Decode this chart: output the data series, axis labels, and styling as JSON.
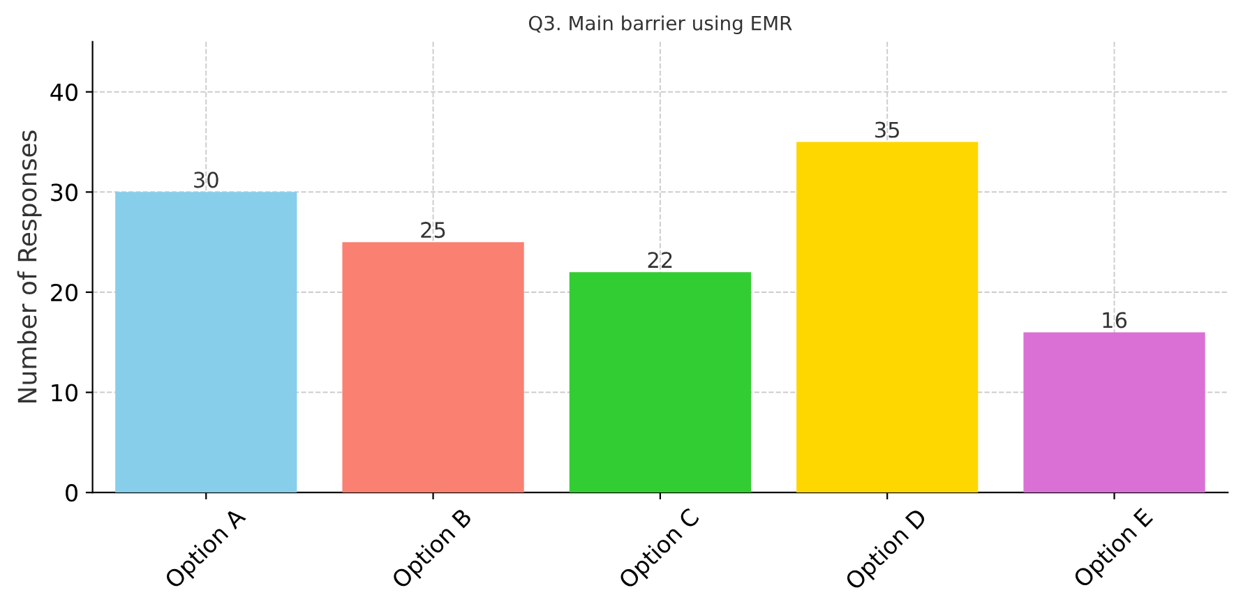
{
  "chart_data": {
    "type": "bar",
    "title": "Q3. Main barrier using EMR",
    "ylabel": "Number of Responses",
    "categories": [
      "Option A",
      "Option B",
      "Option C",
      "Option D",
      "Option E"
    ],
    "values": [
      30,
      25,
      22,
      35,
      16
    ],
    "colors": [
      "#87ceeb",
      "#fa8072",
      "#32cd32",
      "#ffd700",
      "#da70d6"
    ],
    "ylim": [
      0,
      45
    ],
    "yticks": [
      0,
      10,
      20,
      30,
      40
    ],
    "grid": true,
    "data_labels": true
  }
}
